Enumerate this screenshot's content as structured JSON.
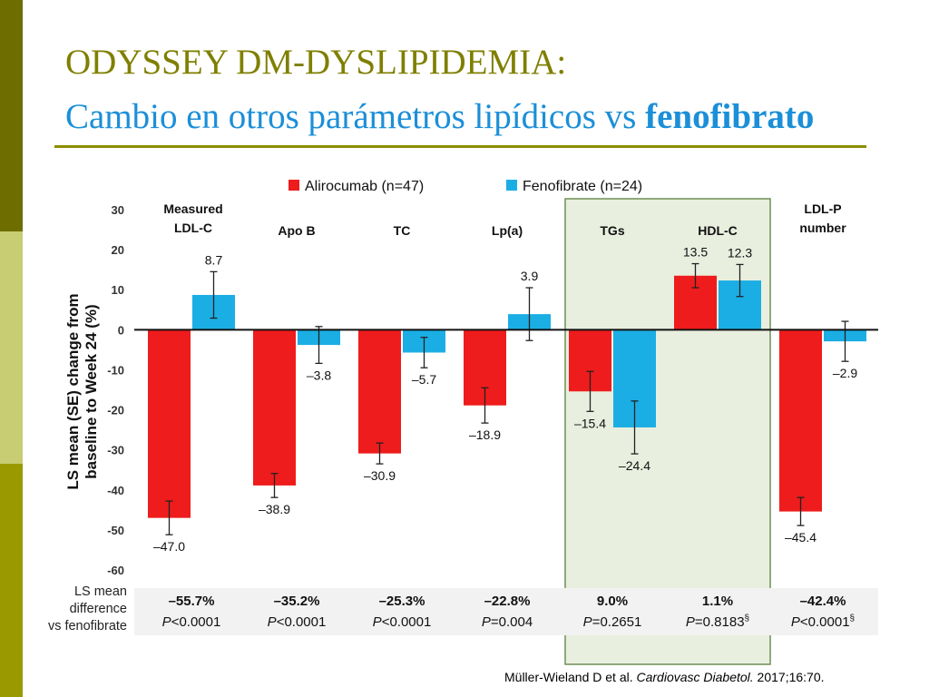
{
  "title": {
    "line1": "ODYSSEY DM-DYSLIPIDEMIA:",
    "line2_prefix": "Cambio en otros parámetros lipídicos vs",
    "line2_bold": "fenofibrato"
  },
  "colors": {
    "alirocumab": "#EE1C1C",
    "fenofibrate": "#1BAEE4",
    "title1": "#7F7F00",
    "title2": "#1B8FD8",
    "sidebar_dark": "#6E6E00",
    "sidebar_light": "#C8CC72",
    "highlight_box": "#E9EFDF"
  },
  "chart_data": {
    "type": "bar",
    "ylabel": "LS mean (SE) change from baseline to Week 24 (%)",
    "ylim": [
      -60,
      30
    ],
    "yticks": [
      30,
      20,
      10,
      0,
      -10,
      -20,
      -30,
      -40,
      -50,
      -60
    ],
    "categories": [
      "Measured LDL-C",
      "Apo B",
      "TC",
      "Lp(a)",
      "TGs",
      "HDL-C",
      "LDL-P number"
    ],
    "series": [
      {
        "name": "Alirocumab (n=47)",
        "values": [
          -47.0,
          -38.9,
          -30.9,
          -18.9,
          -15.4,
          13.5,
          -45.4
        ],
        "se": [
          4.2,
          3.0,
          2.6,
          4.4,
          5.0,
          3.0,
          3.5
        ]
      },
      {
        "name": "Fenofibrate (n=24)",
        "values": [
          8.7,
          -3.8,
          -5.7,
          3.9,
          -24.4,
          12.3,
          -2.9
        ],
        "se": [
          5.8,
          4.6,
          3.8,
          6.6,
          6.6,
          4.0,
          5.0
        ]
      }
    ],
    "value_labels": {
      "alirocumab": [
        "–47.0",
        "–38.9",
        "–30.9",
        "–18.9",
        "–15.4",
        "13.5",
        "–45.4"
      ],
      "fenofibrate": [
        "8.7",
        "–3.8",
        "–5.7",
        "3.9",
        "–24.4",
        "12.3",
        "–2.9"
      ]
    },
    "legend": [
      "Alirocumab (n=47)",
      "Fenofibrate (n=24)"
    ],
    "legend_position": "top",
    "highlighted_categories": [
      "TGs",
      "HDL-C"
    ],
    "difference_row": {
      "label": "LS mean difference vs fenofibrate",
      "differences": [
        "–55.7%",
        "–35.2%",
        "–25.3%",
        "–22.8%",
        "9.0%",
        "1.1%",
        "–42.4%"
      ],
      "p_values": [
        {
          "p": "P",
          "rest": "<0.0001",
          "sup": ""
        },
        {
          "p": "P",
          "rest": "<0.0001",
          "sup": ""
        },
        {
          "p": "P",
          "rest": "<0.0001",
          "sup": ""
        },
        {
          "p": "P",
          "rest": "=0.004",
          "sup": ""
        },
        {
          "p": "P",
          "rest": "=0.2651",
          "sup": ""
        },
        {
          "p": "P",
          "rest": "=0.8183",
          "sup": "§"
        },
        {
          "p": "P",
          "rest": "<0.0001",
          "sup": "§"
        }
      ]
    }
  },
  "citation": {
    "authors": "Müller-Wieland D et al. ",
    "journal": "Cardiovasc Diabetol.",
    "details": " 2017;16:70."
  }
}
